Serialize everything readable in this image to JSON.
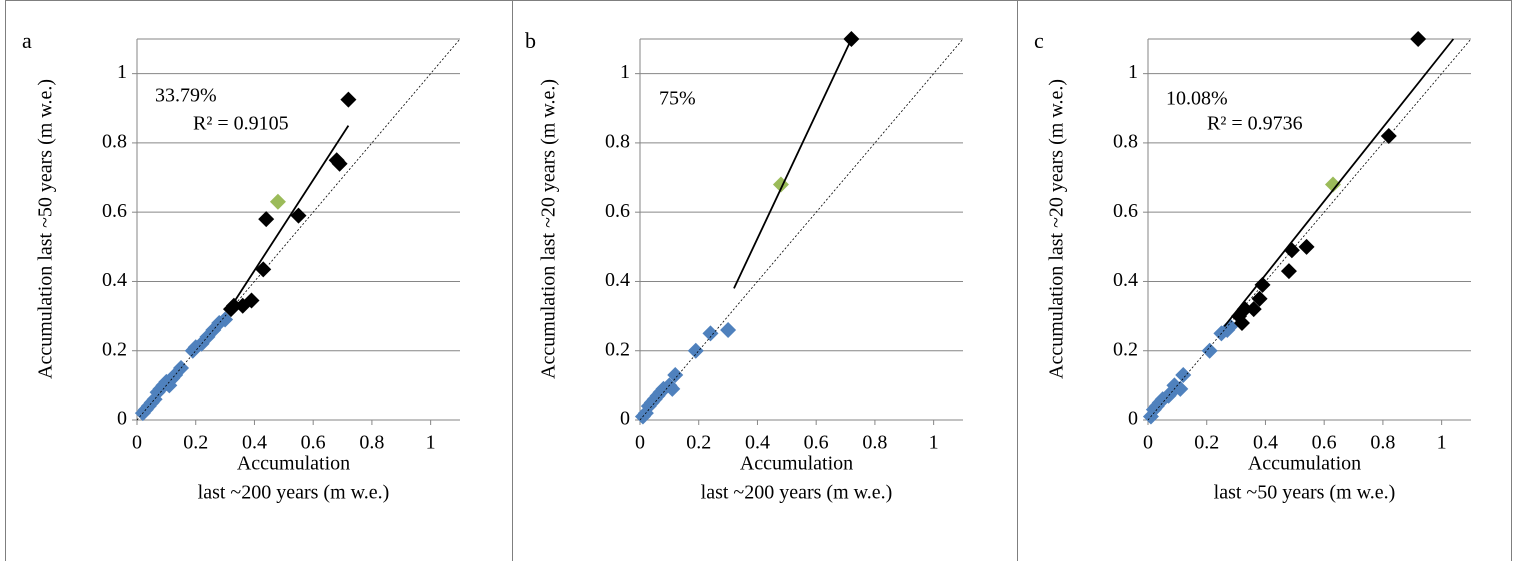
{
  "chart_data": [
    {
      "type": "scatter",
      "panel_label": "a",
      "xlabel": [
        "Accumulation",
        "last ~200 years (m w.e.)"
      ],
      "ylabel": "Accumulation last ~50 years (m w.e.)",
      "xlim": [
        0,
        1.1
      ],
      "ylim": [
        0,
        1.1
      ],
      "xticks": [
        0,
        0.2,
        0.4,
        0.6,
        0.8,
        1
      ],
      "yticks": [
        0,
        0.2,
        0.4,
        0.6,
        0.8,
        1
      ],
      "grid": true,
      "annotations": [
        "33.79%",
        "R² = 0.9105"
      ],
      "series": [
        {
          "color": "#4f81bd",
          "marker": "diamond",
          "x": [
            0.02,
            0.03,
            0.04,
            0.05,
            0.06,
            0.07,
            0.08,
            0.09,
            0.1,
            0.11,
            0.12,
            0.13,
            0.15,
            0.19,
            0.2,
            0.22,
            0.24,
            0.26,
            0.28,
            0.3
          ],
          "values": [
            0.02,
            0.03,
            0.04,
            0.05,
            0.06,
            0.08,
            0.09,
            0.1,
            0.11,
            0.1,
            0.12,
            0.13,
            0.15,
            0.2,
            0.21,
            0.22,
            0.24,
            0.26,
            0.28,
            0.29
          ]
        },
        {
          "color": "#000000",
          "marker": "diamond",
          "x": [
            0.32,
            0.33,
            0.36,
            0.39,
            0.43,
            0.44,
            0.55,
            0.68,
            0.69,
            0.72
          ],
          "values": [
            0.32,
            0.33,
            0.33,
            0.345,
            0.435,
            0.58,
            0.59,
            0.75,
            0.74,
            0.925
          ]
        },
        {
          "color": "#9bbb59",
          "marker": "diamond",
          "x": [
            0.48
          ],
          "values": [
            0.63
          ]
        },
        {
          "color": "#000000",
          "line": "solid",
          "x": [
            0.33,
            0.72
          ],
          "values": [
            0.34,
            0.85
          ]
        },
        {
          "color": "#000000",
          "line": "dotted",
          "x": [
            0,
            1.1
          ],
          "values": [
            0,
            1.1
          ]
        }
      ]
    },
    {
      "type": "scatter",
      "panel_label": "b",
      "xlabel": [
        "Accumulation",
        "last ~200 years (m w.e.)"
      ],
      "ylabel": "Accumulation last ~20 years (m w.e.)",
      "xlim": [
        0,
        1.1
      ],
      "ylim": [
        0,
        1.1
      ],
      "xticks": [
        0,
        0.2,
        0.4,
        0.6,
        0.8,
        1
      ],
      "yticks": [
        0,
        0.2,
        0.4,
        0.6,
        0.8,
        1
      ],
      "grid": true,
      "annotations": [
        "75%"
      ],
      "series": [
        {
          "color": "#4f81bd",
          "marker": "diamond",
          "x": [
            0.01,
            0.02,
            0.03,
            0.04,
            0.05,
            0.06,
            0.07,
            0.08,
            0.1,
            0.11,
            0.12,
            0.19,
            0.24,
            0.3
          ],
          "values": [
            0.01,
            0.02,
            0.04,
            0.05,
            0.06,
            0.07,
            0.08,
            0.09,
            0.1,
            0.09,
            0.13,
            0.2,
            0.25,
            0.26
          ]
        },
        {
          "color": "#000000",
          "marker": "diamond",
          "x": [
            0.72
          ],
          "values": [
            1.1
          ]
        },
        {
          "color": "#9bbb59",
          "marker": "diamond",
          "x": [
            0.48
          ],
          "values": [
            0.68
          ]
        },
        {
          "color": "#000000",
          "line": "solid",
          "x": [
            0.32,
            0.72
          ],
          "values": [
            0.38,
            1.1
          ]
        },
        {
          "color": "#000000",
          "line": "dotted",
          "x": [
            0,
            1.1
          ],
          "values": [
            0,
            1.1
          ]
        }
      ]
    },
    {
      "type": "scatter",
      "panel_label": "c",
      "xlabel": [
        "Accumulation",
        "last ~50 years (m w.e.)"
      ],
      "ylabel": "Accumulation last ~20 years (m w.e.)",
      "xlim": [
        0,
        1.1
      ],
      "ylim": [
        0,
        1.1
      ],
      "xticks": [
        0,
        0.2,
        0.4,
        0.6,
        0.8,
        1
      ],
      "yticks": [
        0,
        0.2,
        0.4,
        0.6,
        0.8,
        1
      ],
      "grid": true,
      "annotations": [
        "10.08%",
        "R² = 0.9736"
      ],
      "series": [
        {
          "color": "#4f81bd",
          "marker": "diamond",
          "x": [
            0.01,
            0.02,
            0.03,
            0.04,
            0.05,
            0.07,
            0.08,
            0.09,
            0.11,
            0.12,
            0.21,
            0.25,
            0.27,
            0.28
          ],
          "values": [
            0.01,
            0.03,
            0.04,
            0.05,
            0.06,
            0.07,
            0.08,
            0.1,
            0.09,
            0.13,
            0.2,
            0.25,
            0.26,
            0.27
          ]
        },
        {
          "color": "#000000",
          "marker": "diamond",
          "x": [
            0.31,
            0.32,
            0.33,
            0.36,
            0.38,
            0.39,
            0.48,
            0.49,
            0.54,
            0.82,
            0.92
          ],
          "values": [
            0.3,
            0.28,
            0.32,
            0.32,
            0.35,
            0.39,
            0.43,
            0.49,
            0.5,
            0.82,
            1.1
          ]
        },
        {
          "color": "#9bbb59",
          "marker": "diamond",
          "x": [
            0.63
          ],
          "values": [
            0.68
          ]
        },
        {
          "color": "#000000",
          "line": "solid",
          "x": [
            0.26,
            1.04
          ],
          "values": [
            0.27,
            1.1
          ]
        },
        {
          "color": "#000000",
          "line": "dotted",
          "x": [
            0,
            1.1
          ],
          "values": [
            0,
            1.1
          ]
        }
      ]
    }
  ]
}
